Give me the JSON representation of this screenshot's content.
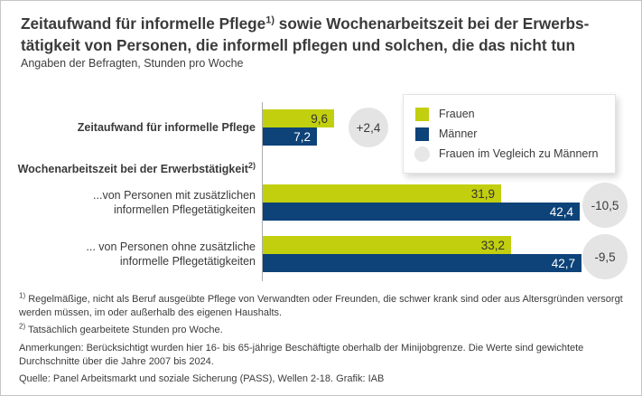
{
  "header": {
    "title_line1_pre": "Zeitaufwand für informelle Pflege",
    "title_sup": "1)",
    "title_line1_post": " sowie Wochenarbeitszeit bei der Erwerbs-",
    "title_line2": "tätigkeit von Personen, die informell pflegen und solchen, die das nicht tun",
    "subtitle": "Angaben der Befragten, Stunden pro Woche"
  },
  "legend": {
    "items": [
      {
        "label": "Frauen",
        "swatch": "square-frauen-color"
      },
      {
        "label": "Männer",
        "swatch": "square-maenner-color"
      },
      {
        "label": "Frauen im Vegleich zu Männern",
        "swatch": "gray-circle"
      }
    ]
  },
  "colors": {
    "frauen": "#c2cf0e",
    "maenner": "#0d4379",
    "badge_bg": "#e4e4e4",
    "legend_circle": "#e7e7e7",
    "text": "#3a3a3a"
  },
  "chart_data": {
    "type": "bar",
    "orientation": "horizontal",
    "value_unit": "Stunden pro Woche",
    "xlim": [
      0,
      43.5
    ],
    "grid": false,
    "legend_position": "top-right",
    "series_names": [
      "Frauen",
      "Männer"
    ],
    "section_header": {
      "text": "Wochenarbeitszeit bei der Erwerbstätigkeit",
      "sup": "2)"
    },
    "groups": [
      {
        "label_lines": [
          "Zeitaufwand für informelle Pflege"
        ],
        "values": {
          "frauen": 9.6,
          "maenner": 7.2
        },
        "value_labels": {
          "frauen": "9,6",
          "maenner": "7,2"
        },
        "difference_label": "+2,4"
      },
      {
        "label_lines": [
          "...von Personen mit zusätzlichen",
          "informellen Pflegetätigkeiten"
        ],
        "values": {
          "frauen": 31.9,
          "maenner": 42.4
        },
        "value_labels": {
          "frauen": "31,9",
          "maenner": "42,4"
        },
        "difference_label": "-10,5"
      },
      {
        "label_lines": [
          "... von Personen ohne zusätzliche",
          "informelle Pflegetätigkeiten"
        ],
        "values": {
          "frauen": 33.2,
          "maenner": 42.7
        },
        "value_labels": {
          "frauen": "33,2",
          "maenner": "42,7"
        },
        "difference_label": "-9,5"
      }
    ]
  },
  "footnotes": [
    {
      "sup": "1)",
      "text": "Regelmäßige, nicht als Beruf ausgeübte Pflege von Verwandten oder Freunden, die schwer krank sind oder aus Altersgründen versorgt werden müssen, im oder außerhalb des eigenen Haushalts."
    },
    {
      "sup": "2)",
      "text": "Tatsächlich gearbeitete Stunden pro Woche."
    }
  ],
  "notes": "Anmerkungen: Berücksichtigt wurden hier 16- bis 65-jährige Beschäftigte oberhalb der Minijobgrenze. Die Werte sind gewichtete Durchschnitte über die Jahre  2007 bis 2024.",
  "source": "Quelle: Panel Arbeitsmarkt und soziale Sicherung (PASS), Wellen 2-18. Grafik: IAB"
}
